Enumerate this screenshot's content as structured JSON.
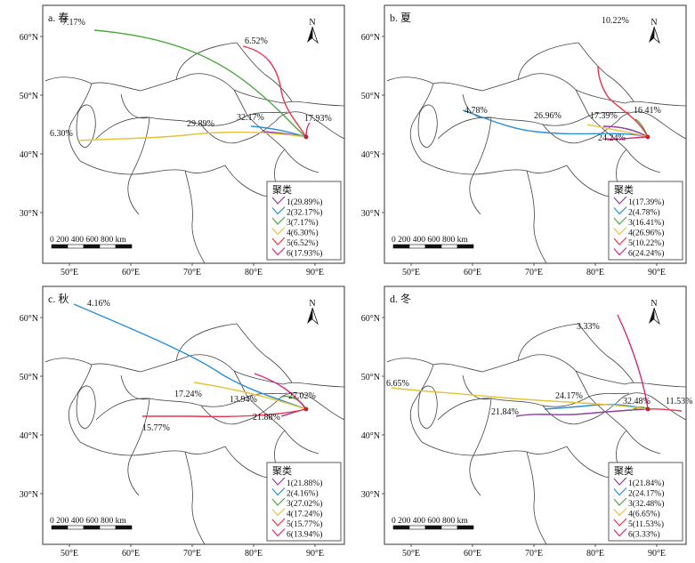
{
  "panels": [
    {
      "label": "a. 春",
      "legend_title": "聚类",
      "clusters": [
        {
          "label": "1(29.89%)",
          "color": "#8e3f9e"
        },
        {
          "label": "2(32.17%)",
          "color": "#2a8fd4"
        },
        {
          "label": "3(7.17%)",
          "color": "#4aa83c"
        },
        {
          "label": "4(6.30%)",
          "color": "#e3c33a"
        },
        {
          "label": "5(6.52%)",
          "color": "#e8354a"
        },
        {
          "label": "6(17.93%)",
          "color": "#d6287e"
        }
      ],
      "pct_labels": [
        "7.17%",
        "6.52%",
        "6.30%",
        "29.89%",
        "32.17%",
        "17.93%"
      ],
      "x_ticks": [
        "50°E",
        "60°E",
        "70°E",
        "80°E",
        "90°E"
      ],
      "y_ticks": [
        "60°N",
        "50°N",
        "40°N",
        "30°N"
      ],
      "scale_text": "0 200 400 600 800 km",
      "north": "N"
    },
    {
      "label": "b. 夏",
      "legend_title": "聚类",
      "clusters": [
        {
          "label": "1(17.39%)",
          "color": "#8e3f9e"
        },
        {
          "label": "2(4.78%)",
          "color": "#2a8fd4"
        },
        {
          "label": "3(16.41%)",
          "color": "#4aa83c"
        },
        {
          "label": "4(26.96%)",
          "color": "#e3c33a"
        },
        {
          "label": "5(10.22%)",
          "color": "#e8354a"
        },
        {
          "label": "6(24.24%)",
          "color": "#d6287e"
        }
      ],
      "pct_labels": [
        "10.22%",
        "4.78%",
        "26.96%",
        "17.39%",
        "16.41%",
        "24.24%"
      ],
      "x_ticks": [
        "50°E",
        "60°E",
        "70°E",
        "80°E",
        "90°E"
      ],
      "y_ticks": [
        "60°N",
        "50°N",
        "40°N",
        "30°N"
      ],
      "scale_text": "0 200 400 600 800 km",
      "north": "N"
    },
    {
      "label": "c. 秋",
      "legend_title": "聚类",
      "clusters": [
        {
          "label": "1(21.88%)",
          "color": "#8e3f9e"
        },
        {
          "label": "2(4.16%)",
          "color": "#2a8fd4"
        },
        {
          "label": "3(27.02%)",
          "color": "#4aa83c"
        },
        {
          "label": "4(17.24%)",
          "color": "#e3c33a"
        },
        {
          "label": "5(15.77%)",
          "color": "#e8354a"
        },
        {
          "label": "6(13.94%)",
          "color": "#d6287e"
        }
      ],
      "pct_labels": [
        "4.16%",
        "13.94%",
        "17.24%",
        "27.02%",
        "15.77%",
        "21.88%"
      ],
      "x_ticks": [
        "50°E",
        "60°E",
        "70°E",
        "80°E",
        "90°E"
      ],
      "y_ticks": [
        "60°N",
        "50°N",
        "40°N",
        "30°N"
      ],
      "scale_text": "0 200 400 600 800 km",
      "north": "N"
    },
    {
      "label": "d. 冬",
      "legend_title": "聚类",
      "clusters": [
        {
          "label": "1(21.84%)",
          "color": "#8e3f9e"
        },
        {
          "label": "2(24.17%)",
          "color": "#2a8fd4"
        },
        {
          "label": "3(32.48%)",
          "color": "#4aa83c"
        },
        {
          "label": "4(6.65%)",
          "color": "#e3c33a"
        },
        {
          "label": "5(11.53%)",
          "color": "#e8354a"
        },
        {
          "label": "6(3.33%)",
          "color": "#d6287e"
        }
      ],
      "pct_labels": [
        "3.33%",
        "6.65%",
        "24.17%",
        "21.84%",
        "32.48%",
        "11.53%"
      ],
      "x_ticks": [
        "50°E",
        "60°E",
        "70°E",
        "80°E",
        "90°E"
      ],
      "y_ticks": [
        "60°N",
        "50°N",
        "40°N",
        "30°N"
      ],
      "scale_text": "0 200 400 600 800 km",
      "north": "N"
    }
  ]
}
